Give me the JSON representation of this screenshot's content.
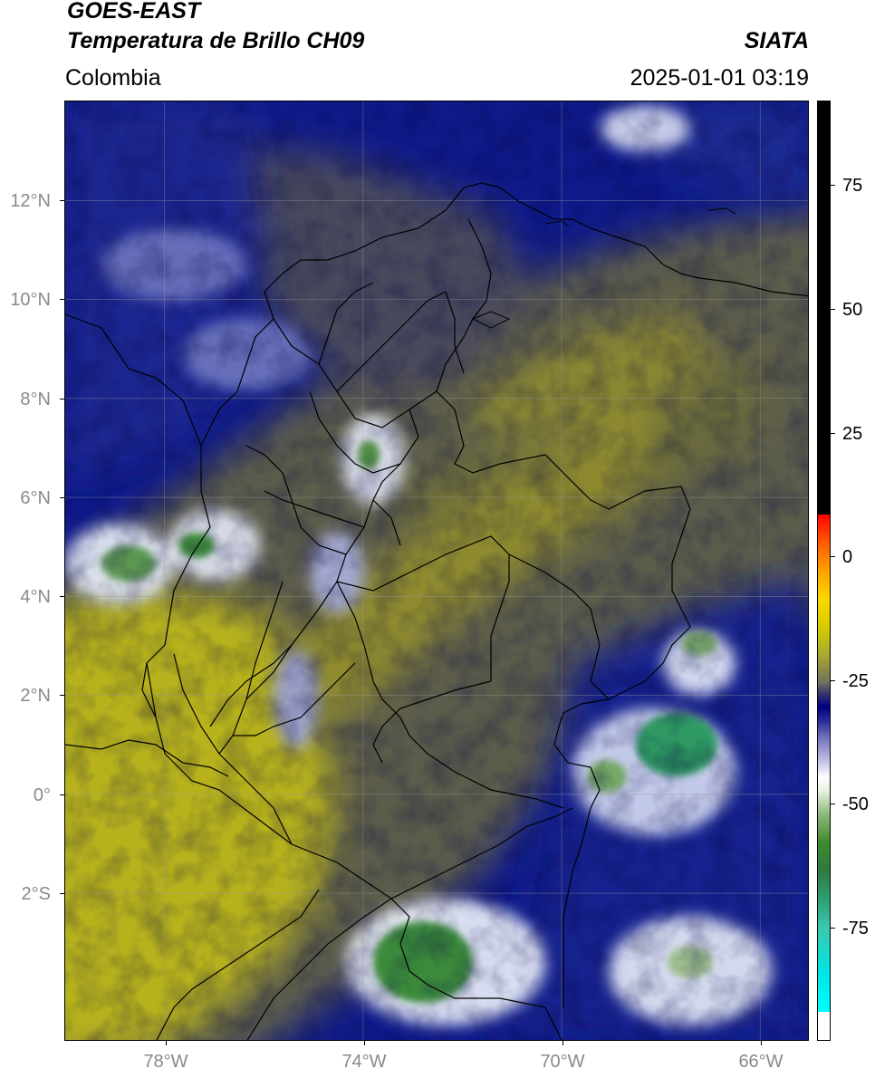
{
  "header": {
    "satellite": "GOES-EAST",
    "product": "Temperatura de Brillo CH09",
    "region": "Colombia",
    "source": "SIATA",
    "timestamp": "2025-01-01 03:19"
  },
  "map": {
    "latitude_labels": [
      "12°N",
      "10°N",
      "8°N",
      "6°N",
      "4°N",
      "2°N",
      "0°",
      "2°S"
    ],
    "longitude_labels": [
      "78°W",
      "74°W",
      "70°W",
      "66°W"
    ],
    "latitude_values": [
      12,
      10,
      8,
      6,
      4,
      2,
      0,
      -2
    ],
    "longitude_values": [
      -78,
      -74,
      -70,
      -66
    ],
    "extent": {
      "lon_min": -80,
      "lon_max": -65,
      "lat_min": -5,
      "lat_max": 14
    },
    "gridlines": true,
    "colors": {
      "cloud_cold": "#0e1a8c",
      "clear_warm": "#b9b419",
      "mid": "#5b5b55",
      "cloud_top_white": "#ffffff",
      "deep_convection": "#3a8a3a"
    }
  },
  "colorbar": {
    "tick_labels": [
      "75",
      "50",
      "25",
      "0",
      "-25",
      "-50",
      "-75"
    ],
    "tick_values": [
      75,
      50,
      25,
      0,
      -25,
      -50,
      -75
    ],
    "range": [
      -95,
      95
    ],
    "orientation": "vertical",
    "placement": "right"
  }
}
